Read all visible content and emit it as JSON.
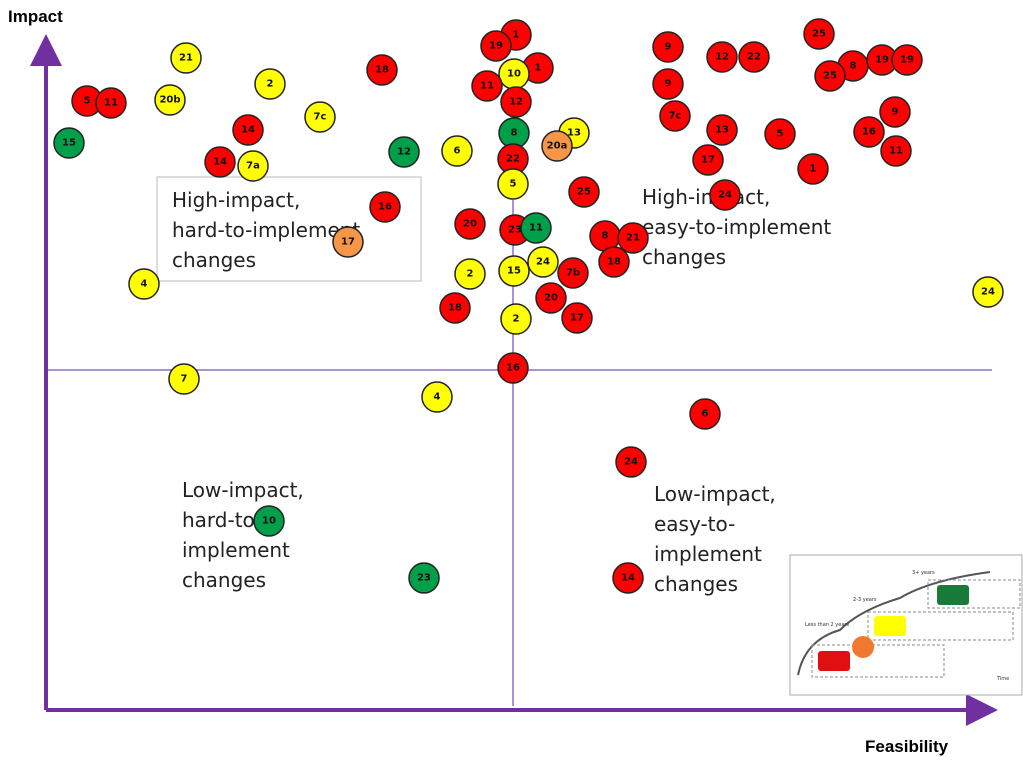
{
  "axes": {
    "y_label": "Impact",
    "x_label": "Feasibility"
  },
  "quadrants": [
    {
      "lines": [
        "High-impact,",
        "hard-to-implement",
        "changes"
      ]
    },
    {
      "lines": [
        "High-impact,",
        "easy-to-implement",
        "changes"
      ]
    },
    {
      "lines": [
        "Low-impact,",
        "hard-to-",
        "implement",
        "changes"
      ]
    },
    {
      "lines": [
        "Low-impact,",
        "easy-to-",
        "implement",
        "changes"
      ]
    }
  ],
  "colors": {
    "red": "#ff0000",
    "yellow": "#ffff00",
    "green": "#00a04a",
    "orange": "#f79646"
  },
  "nodes": [
    {
      "label": "1",
      "color": "red"
    },
    {
      "label": "19",
      "color": "red"
    },
    {
      "label": "1",
      "color": "red"
    },
    {
      "label": "10",
      "color": "yellow"
    },
    {
      "label": "11",
      "color": "red"
    },
    {
      "label": "12",
      "color": "red"
    },
    {
      "label": "8",
      "color": "green"
    },
    {
      "label": "13",
      "color": "yellow"
    },
    {
      "label": "20a",
      "color": "orange"
    },
    {
      "label": "22",
      "color": "red"
    },
    {
      "label": "5",
      "color": "yellow"
    },
    {
      "label": "25",
      "color": "red"
    },
    {
      "label": "20",
      "color": "red"
    },
    {
      "label": "23",
      "color": "red"
    },
    {
      "label": "11",
      "color": "green"
    },
    {
      "label": "8",
      "color": "red"
    },
    {
      "label": "21",
      "color": "red"
    },
    {
      "label": "18",
      "color": "red"
    },
    {
      "label": "2",
      "color": "yellow"
    },
    {
      "label": "15",
      "color": "yellow"
    },
    {
      "label": "24",
      "color": "yellow"
    },
    {
      "label": "7b",
      "color": "red"
    },
    {
      "label": "20",
      "color": "red"
    },
    {
      "label": "17",
      "color": "red"
    },
    {
      "label": "18",
      "color": "red"
    },
    {
      "label": "2",
      "color": "yellow"
    },
    {
      "label": "16",
      "color": "red"
    },
    {
      "label": "21",
      "color": "yellow"
    },
    {
      "label": "2",
      "color": "yellow"
    },
    {
      "label": "18",
      "color": "red"
    },
    {
      "label": "5",
      "color": "red"
    },
    {
      "label": "11",
      "color": "red"
    },
    {
      "label": "20b",
      "color": "yellow"
    },
    {
      "label": "7c",
      "color": "yellow"
    },
    {
      "label": "14",
      "color": "red"
    },
    {
      "label": "15",
      "color": "green"
    },
    {
      "label": "14",
      "color": "red"
    },
    {
      "label": "7a",
      "color": "yellow"
    },
    {
      "label": "12",
      "color": "green"
    },
    {
      "label": "6",
      "color": "yellow"
    },
    {
      "label": "16",
      "color": "red"
    },
    {
      "label": "17",
      "color": "orange"
    },
    {
      "label": "4",
      "color": "yellow"
    },
    {
      "label": "7",
      "color": "yellow"
    },
    {
      "label": "4",
      "color": "yellow"
    },
    {
      "label": "10",
      "color": "green"
    },
    {
      "label": "23",
      "color": "green"
    },
    {
      "label": "9",
      "color": "red"
    },
    {
      "label": "12",
      "color": "red"
    },
    {
      "label": "22",
      "color": "red"
    },
    {
      "label": "25",
      "color": "red"
    },
    {
      "label": "8",
      "color": "red"
    },
    {
      "label": "19",
      "color": "red"
    },
    {
      "label": "19",
      "color": "red"
    },
    {
      "label": "25",
      "color": "red"
    },
    {
      "label": "9",
      "color": "red"
    },
    {
      "label": "9",
      "color": "red"
    },
    {
      "label": "7c",
      "color": "red"
    },
    {
      "label": "13",
      "color": "red"
    },
    {
      "label": "5",
      "color": "red"
    },
    {
      "label": "16",
      "color": "red"
    },
    {
      "label": "11",
      "color": "red"
    },
    {
      "label": "17",
      "color": "red"
    },
    {
      "label": "1",
      "color": "red"
    },
    {
      "label": "24",
      "color": "red"
    },
    {
      "label": "24",
      "color": "yellow"
    },
    {
      "label": "6",
      "color": "red"
    },
    {
      "label": "24",
      "color": "red"
    },
    {
      "label": "14",
      "color": "red"
    }
  ],
  "inset": {
    "labels": [
      "3+ years",
      "2-3 years",
      "Less than 2 years",
      "Time"
    ]
  }
}
